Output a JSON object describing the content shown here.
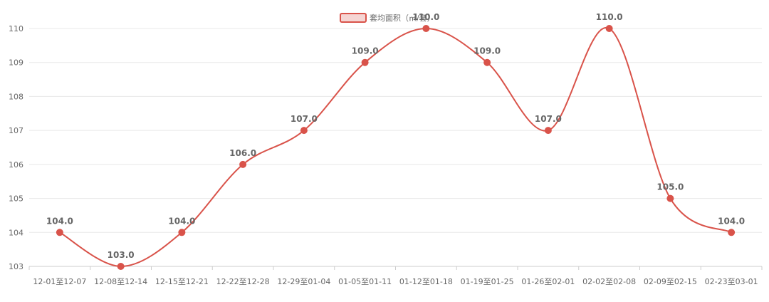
{
  "chart_data": {
    "type": "line",
    "smooth": true,
    "categories": [
      "12-01至12-07",
      "12-08至12-14",
      "12-15至12-21",
      "12-22至12-28",
      "12-29至01-04",
      "01-05至01-11",
      "01-12至01-18",
      "01-19至01-25",
      "01-26至02-01",
      "02-02至02-08",
      "02-09至02-15",
      "02-23至03-01"
    ],
    "series": [
      {
        "name": "套均面积（㎡/套）",
        "values": [
          104.0,
          103.0,
          104.0,
          106.0,
          107.0,
          109.0,
          110.0,
          109.0,
          107.0,
          110.0,
          105.0,
          104.0
        ],
        "data_labels": [
          "104.0",
          "103.0",
          "104.0",
          "106.0",
          "107.0",
          "109.0",
          "110.0",
          "109.0",
          "107.0",
          "110.0",
          "105.0",
          "104.0"
        ]
      }
    ],
    "ylim": [
      103,
      110
    ],
    "yticks": [
      "103",
      "104",
      "105",
      "106",
      "107",
      "108",
      "109",
      "110"
    ],
    "grid": true,
    "legend_position": "top-center",
    "colors": {
      "line": "#d9534a",
      "grid": "#e8e8e8",
      "axis": "#cccccc",
      "text": "#666666",
      "legend_fill": "#f5d5d3"
    }
  }
}
